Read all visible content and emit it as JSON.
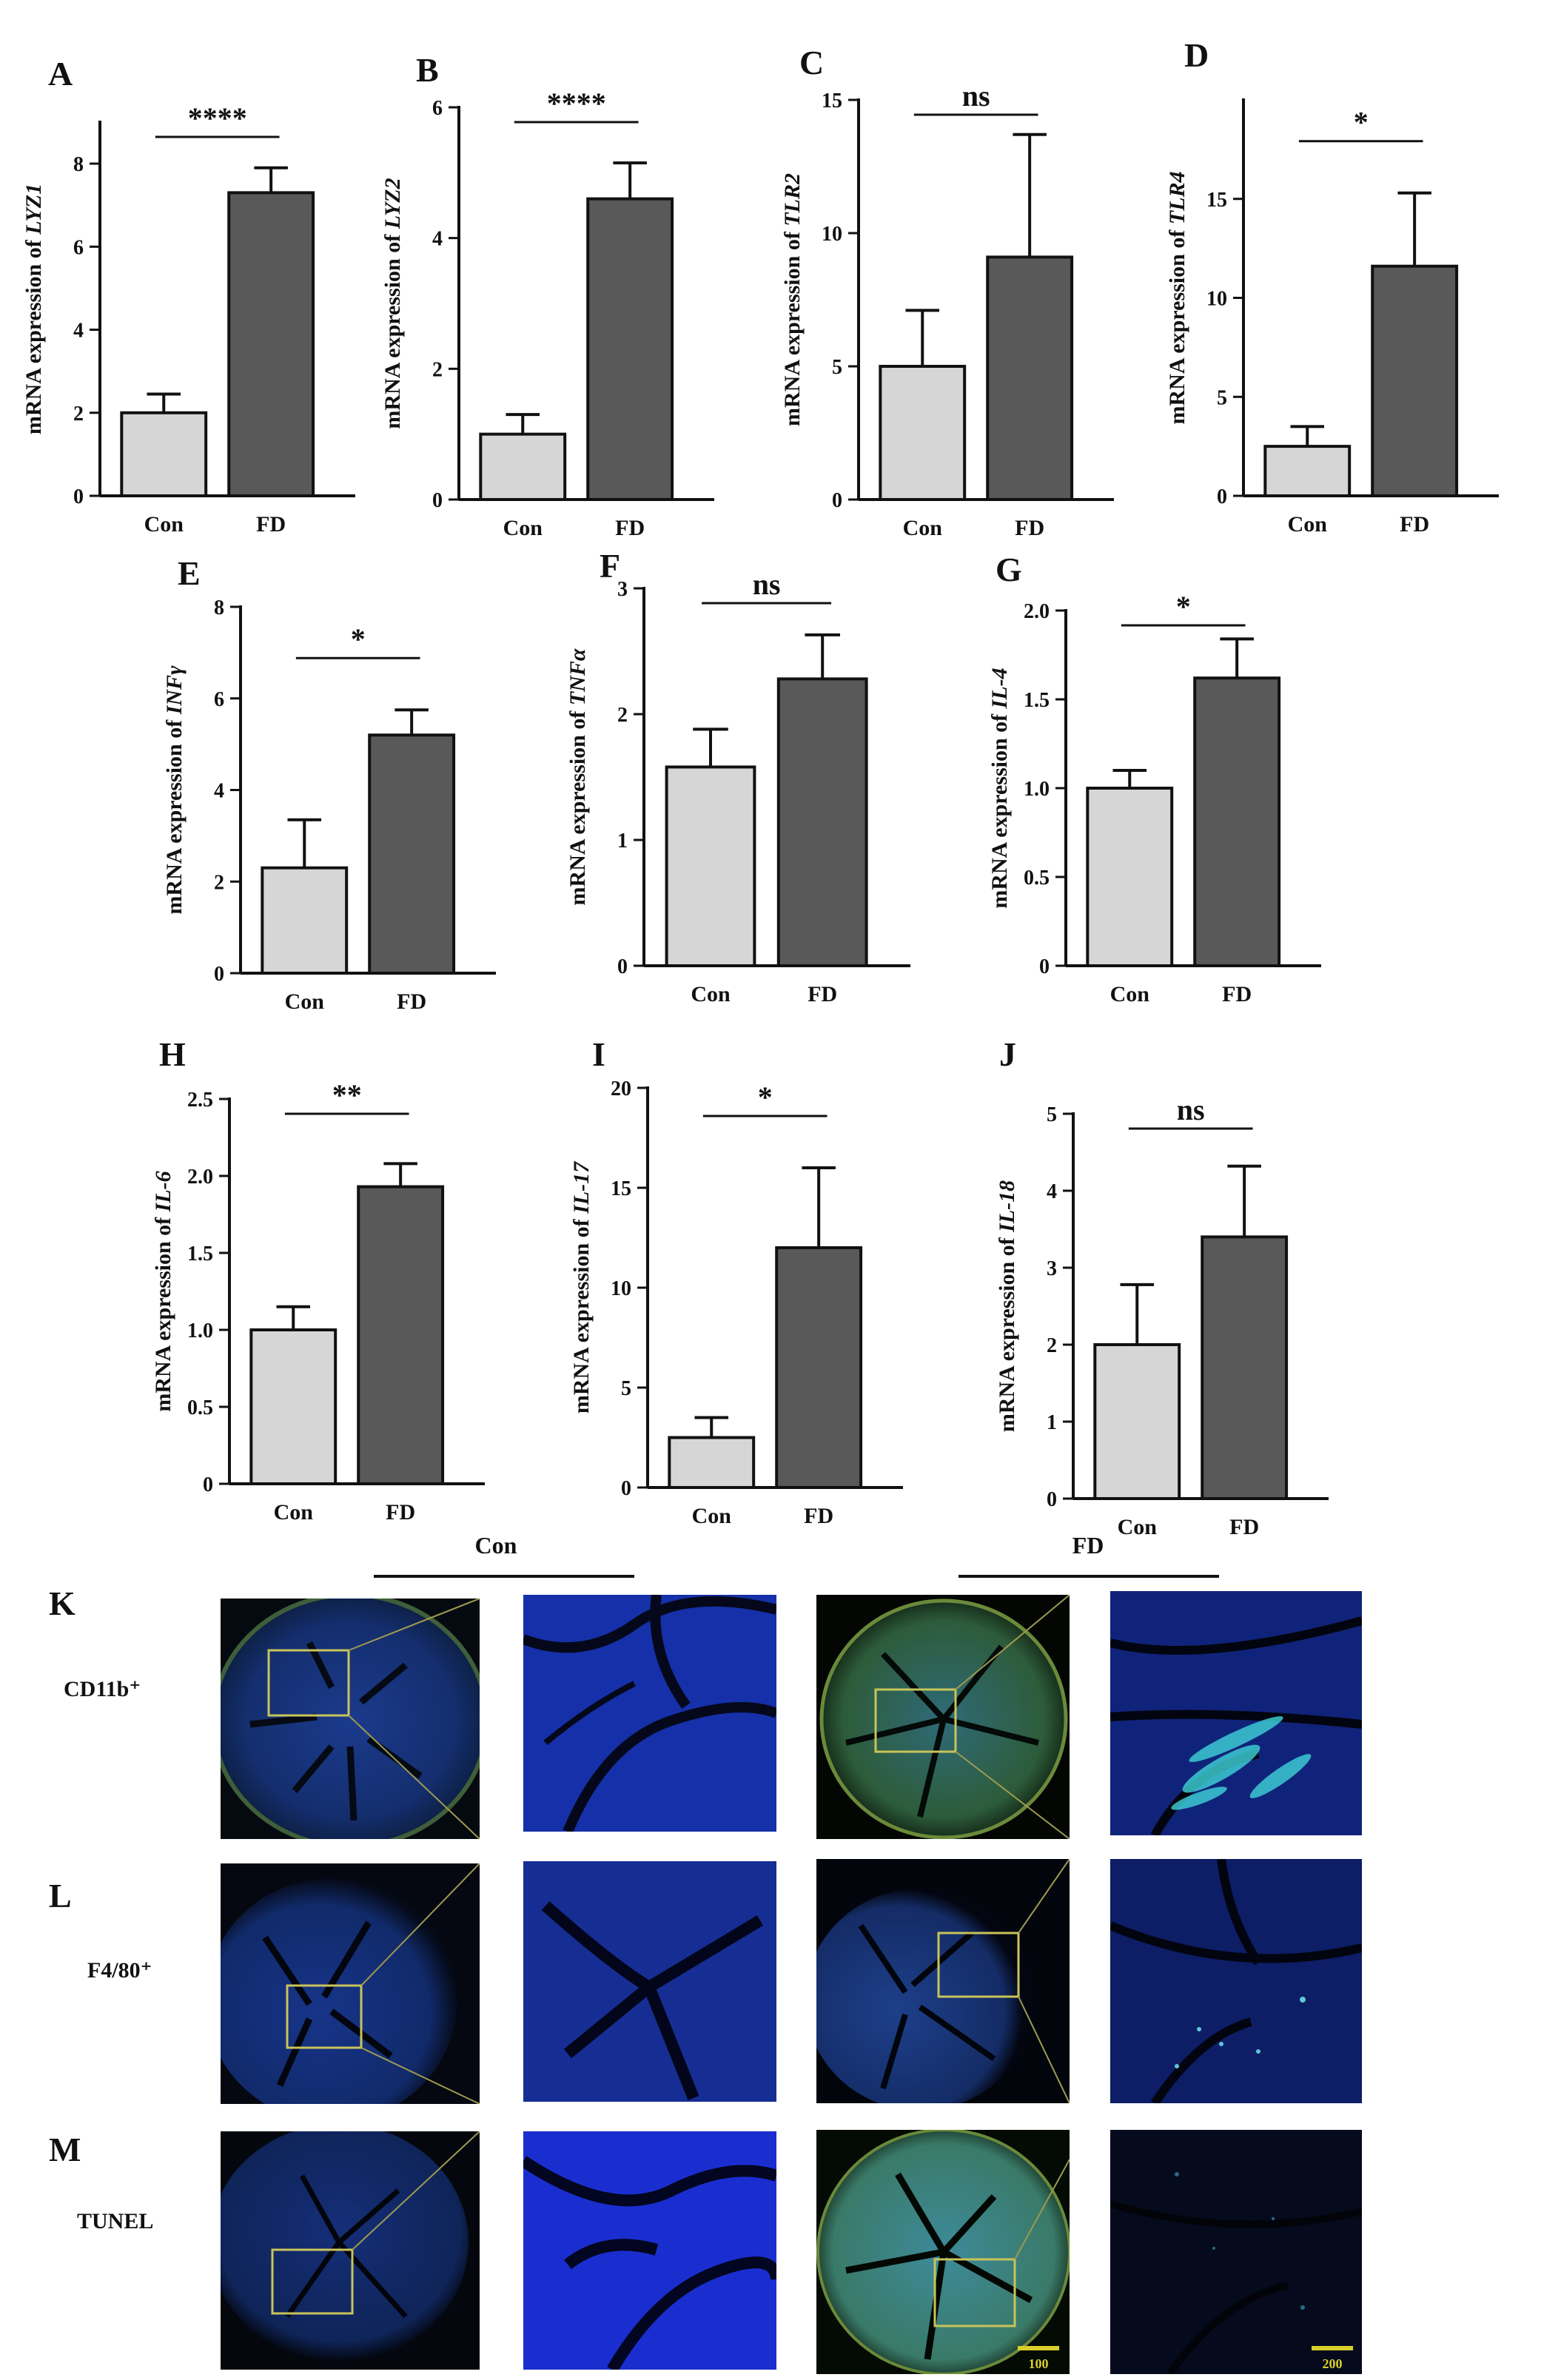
{
  "chart_data": [
    {
      "panel": "A",
      "type": "bar",
      "categories": [
        "Con",
        "FD"
      ],
      "values": [
        2.0,
        7.3
      ],
      "errors": [
        0.45,
        0.6
      ],
      "ylabel_prefix": "mRNA expression of ",
      "ylabel_gene": "LYZ1",
      "ylim": [
        0,
        9
      ],
      "yticks": [
        "0",
        "2",
        "4",
        "6",
        "8"
      ],
      "ytick_values": [
        0,
        2,
        4,
        6,
        8
      ],
      "significance": "****",
      "colors": [
        "#d6d6d6",
        "#595959"
      ]
    },
    {
      "panel": "B",
      "type": "bar",
      "categories": [
        "Con",
        "FD"
      ],
      "values": [
        1.0,
        4.6
      ],
      "errors": [
        0.3,
        0.55
      ],
      "ylabel_prefix": "mRNA expression of ",
      "ylabel_gene": "LYZ2",
      "ylim": [
        0,
        6
      ],
      "yticks": [
        "0",
        "2",
        "4",
        "6"
      ],
      "ytick_values": [
        0,
        2,
        4,
        6
      ],
      "significance": "****",
      "colors": [
        "#d6d6d6",
        "#595959"
      ]
    },
    {
      "panel": "C",
      "type": "bar",
      "categories": [
        "Con",
        "FD"
      ],
      "values": [
        5.0,
        9.1
      ],
      "errors": [
        2.1,
        4.6
      ],
      "ylabel_prefix": "mRNA expression of ",
      "ylabel_gene": "TLR2",
      "ylim": [
        0,
        15
      ],
      "yticks": [
        "0",
        "5",
        "10",
        "15"
      ],
      "ytick_values": [
        0,
        5,
        10,
        15
      ],
      "significance": "ns",
      "colors": [
        "#d6d6d6",
        "#595959"
      ]
    },
    {
      "panel": "D",
      "type": "bar",
      "categories": [
        "Con",
        "FD"
      ],
      "values": [
        2.5,
        11.6
      ],
      "errors": [
        1.0,
        3.7
      ],
      "ylabel_prefix": "mRNA expression of ",
      "ylabel_gene": "TLR4",
      "ylim": [
        0,
        20
      ],
      "yticks": [
        "0",
        "5",
        "10",
        "15"
      ],
      "ytick_values": [
        0,
        5,
        10,
        15
      ],
      "significance": "*",
      "colors": [
        "#d6d6d6",
        "#595959"
      ]
    },
    {
      "panel": "E",
      "type": "bar",
      "categories": [
        "Con",
        "FD"
      ],
      "values": [
        2.3,
        5.2
      ],
      "errors": [
        1.05,
        0.55
      ],
      "ylabel_prefix": "mRNA expression of ",
      "ylabel_gene": "INFγ",
      "ylim": [
        0,
        8
      ],
      "yticks": [
        "0",
        "2",
        "4",
        "6",
        "8"
      ],
      "ytick_values": [
        0,
        2,
        4,
        6,
        8
      ],
      "significance": "*",
      "colors": [
        "#d6d6d6",
        "#595959"
      ]
    },
    {
      "panel": "F",
      "type": "bar",
      "categories": [
        "Con",
        "FD"
      ],
      "values": [
        1.58,
        2.28
      ],
      "errors": [
        0.3,
        0.35
      ],
      "ylabel_prefix": "mRNA expression of ",
      "ylabel_gene": "TNFα",
      "ylim": [
        0,
        3
      ],
      "yticks": [
        "0",
        "1",
        "2",
        "3"
      ],
      "ytick_values": [
        0,
        1,
        2,
        3
      ],
      "significance": "ns",
      "colors": [
        "#d6d6d6",
        "#595959"
      ]
    },
    {
      "panel": "G",
      "type": "bar",
      "categories": [
        "Con",
        "FD"
      ],
      "values": [
        1.0,
        1.62
      ],
      "errors": [
        0.1,
        0.22
      ],
      "ylabel_prefix": "mRNA expression of ",
      "ylabel_gene": "IL-4",
      "ylim": [
        0,
        2.0
      ],
      "yticks": [
        "0",
        "0.5",
        "1.0",
        "1.5",
        "2.0"
      ],
      "ytick_values": [
        0,
        0.5,
        1,
        1.5,
        2
      ],
      "significance": "*",
      "colors": [
        "#d6d6d6",
        "#595959"
      ]
    },
    {
      "panel": "H",
      "type": "bar",
      "categories": [
        "Con",
        "FD"
      ],
      "values": [
        1.0,
        1.93
      ],
      "errors": [
        0.15,
        0.15
      ],
      "ylabel_prefix": "mRNA expression of ",
      "ylabel_gene": "IL-6",
      "ylim": [
        0,
        2.5
      ],
      "yticks": [
        "0",
        "0.5",
        "1.0",
        "1.5",
        "2.0",
        "2.5"
      ],
      "ytick_values": [
        0,
        0.5,
        1,
        1.5,
        2,
        2.5
      ],
      "significance": "**",
      "colors": [
        "#d6d6d6",
        "#595959"
      ]
    },
    {
      "panel": "I",
      "type": "bar",
      "categories": [
        "Con",
        "FD"
      ],
      "values": [
        2.5,
        12.0
      ],
      "errors": [
        1.0,
        4.0
      ],
      "ylabel_prefix": "mRNA expression of ",
      "ylabel_gene": "IL-17",
      "ylim": [
        0,
        20
      ],
      "yticks": [
        "0",
        "5",
        "10",
        "15",
        "20"
      ],
      "ytick_values": [
        0,
        5,
        10,
        15,
        20
      ],
      "significance": "*",
      "colors": [
        "#d6d6d6",
        "#595959"
      ]
    },
    {
      "panel": "J",
      "type": "bar",
      "categories": [
        "Con",
        "FD"
      ],
      "values": [
        2.0,
        3.4
      ],
      "errors": [
        0.78,
        0.92
      ],
      "ylabel_prefix": "mRNA expression of ",
      "ylabel_gene": "IL-18",
      "ylim": [
        0,
        5
      ],
      "yticks": [
        "0",
        "1",
        "2",
        "3",
        "4",
        "5"
      ],
      "ytick_values": [
        0,
        1,
        2,
        3,
        4,
        5
      ],
      "significance": "ns",
      "colors": [
        "#d6d6d6",
        "#595959"
      ]
    }
  ],
  "images": {
    "group_labels": [
      "Con",
      "FD"
    ],
    "rows": [
      {
        "panel": "K",
        "label": "CD11b⁺"
      },
      {
        "panel": "L",
        "label": "F4/80⁺"
      },
      {
        "panel": "M",
        "label": "TUNEL"
      }
    ],
    "scale_bars": [
      "100",
      "200"
    ]
  }
}
